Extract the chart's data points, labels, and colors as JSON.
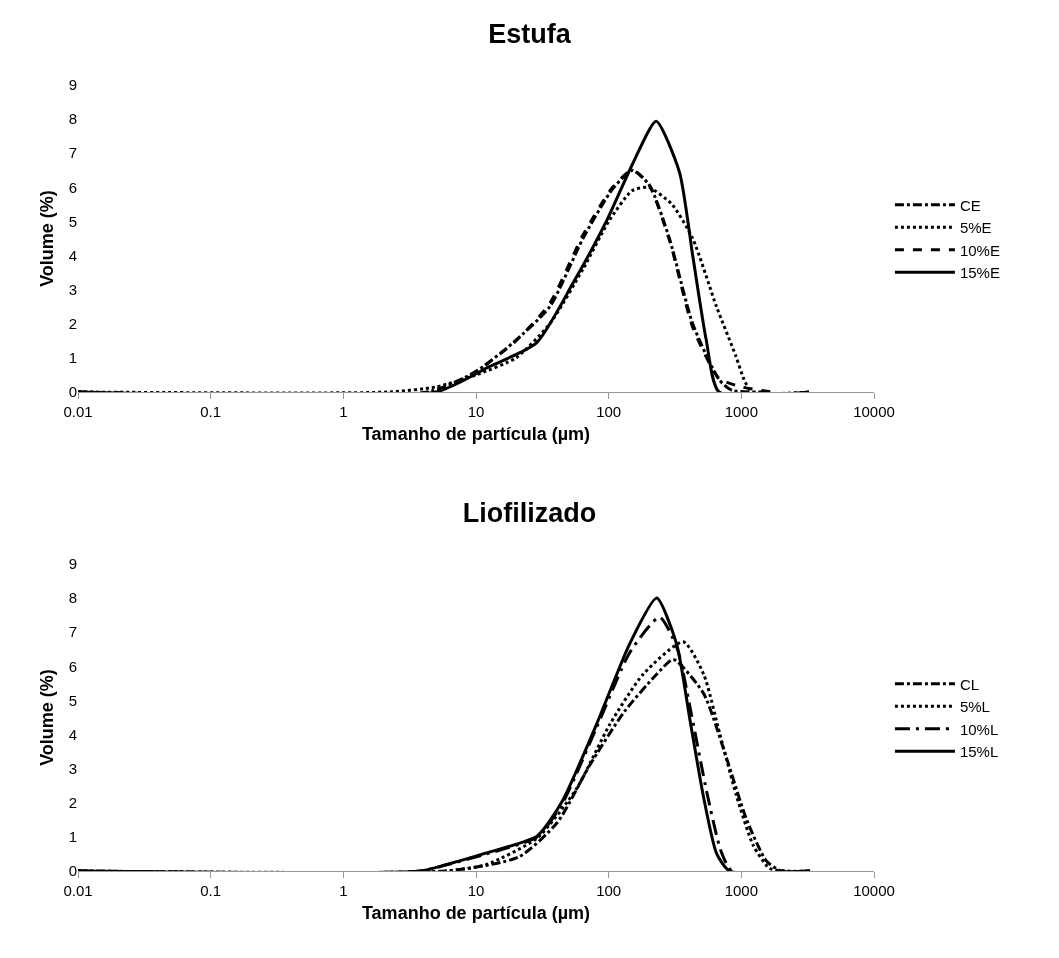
{
  "chart_data": [
    {
      "type": "line",
      "title": "Estufa",
      "xlabel": "Tamanho de partícula (µm)",
      "ylabel": "Volume (%)",
      "log": "x",
      "grid": false,
      "legend": "right",
      "marker": "none",
      "xlim": [
        0.01,
        10000
      ],
      "xticks": [
        0.01,
        0.1,
        1,
        10,
        100,
        1000,
        10000
      ],
      "ylim": [
        0,
        9
      ],
      "yticks": [
        0,
        1,
        2,
        3,
        4,
        5,
        6,
        7,
        8,
        9
      ],
      "series": [
        {
          "name": "CE",
          "color": "#000000",
          "line_style": "dashdot",
          "x": [
            0.01,
            4.3,
            9.6,
            19,
            36,
            64,
            107,
            152,
            204,
            287,
            430,
            680,
            850,
            1620
          ],
          "values": [
            0,
            0,
            0.56,
            1.44,
            2.5,
            4.5,
            5.95,
            6.5,
            6.05,
            4.5,
            2.0,
            0.36,
            0.05,
            0
          ]
        },
        {
          "name": "5%E",
          "color": "#000000",
          "line_style": "dotted",
          "x": [
            0.01,
            2.2,
            5,
            10,
            20,
            36,
            64,
            100,
            150,
            200,
            300,
            430,
            650,
            910,
            1050,
            1200,
            3240
          ],
          "values": [
            0,
            0,
            0.15,
            0.5,
            1.0,
            2.0,
            3.6,
            5.0,
            5.9,
            6.0,
            5.5,
            4.5,
            2.5,
            1.05,
            0.36,
            0,
            0
          ]
        },
        {
          "name": "10%E",
          "color": "#000000",
          "line_style": "dashed",
          "x": [
            0.01,
            4.5,
            10,
            20,
            36,
            64,
            107,
            150,
            200,
            290,
            430,
            680,
            1000,
            1700
          ],
          "values": [
            0,
            0,
            0.6,
            1.5,
            2.6,
            4.6,
            6.0,
            6.5,
            6.1,
            4.4,
            1.9,
            0.4,
            0.15,
            0
          ]
        },
        {
          "name": "15%E",
          "color": "#000000",
          "line_style": "solid",
          "x": [
            0.01,
            5,
            12.7,
            28.6,
            54,
            96,
            152,
            228,
            342,
            430,
            543,
            680,
            3240
          ],
          "values": [
            0,
            0,
            0.75,
            1.44,
            3.2,
            5.0,
            6.7,
            7.94,
            6.44,
            4.0,
            1.54,
            0,
            0
          ]
        }
      ]
    },
    {
      "type": "line",
      "title": "Liofilizado",
      "xlabel": "Tamanho de partícula (µm)",
      "ylabel": "Volume (%)",
      "log": "x",
      "grid": false,
      "legend": "right",
      "marker": "none",
      "xlim": [
        0.01,
        10000
      ],
      "xticks": [
        0.01,
        0.1,
        1,
        10,
        100,
        1000,
        10000
      ],
      "ylim": [
        0,
        9
      ],
      "yticks": [
        0,
        1,
        2,
        3,
        4,
        5,
        6,
        7,
        8,
        9
      ],
      "series": [
        {
          "name": "CL",
          "color": "#000000",
          "line_style": "dashdot",
          "x": [
            0.01,
            6,
            21,
            41,
            72,
            130,
            230,
            307,
            520,
            775,
            1090,
            1540,
            2000,
            3300
          ],
          "values": [
            0,
            0,
            0.41,
            1.42,
            3.1,
            4.65,
            5.77,
            6.2,
            5.2,
            3.3,
            1.53,
            0.3,
            0,
            0
          ]
        },
        {
          "name": "5%L",
          "color": "#000000",
          "line_style": "dotted",
          "x": [
            0.01,
            6,
            12,
            29,
            57,
            102,
            182,
            365,
            520,
            690,
            920,
            1230,
            1630,
            2200,
            3300
          ],
          "values": [
            0,
            0,
            0.19,
            0.97,
            2.4,
            4.3,
            5.77,
            6.72,
            5.77,
            4.0,
            2.2,
            0.75,
            0.08,
            0,
            0
          ]
        },
        {
          "name": "10%L",
          "color": "#000000",
          "line_style": "longdashdot",
          "x": [
            0.01,
            3.8,
            6,
            12,
            29,
            45,
            81,
            144,
            242,
            330,
            420,
            550,
            700,
            850,
            3300
          ],
          "values": [
            0,
            0,
            0.18,
            0.5,
            1.0,
            2.0,
            4.2,
            6.4,
            7.44,
            6.5,
            4.6,
            2.3,
            0.6,
            0,
            0
          ]
        },
        {
          "name": "15%L",
          "color": "#000000",
          "line_style": "solid",
          "x": [
            0.01,
            3.8,
            6,
            12,
            29,
            45,
            81,
            144,
            230,
            325,
            410,
            517,
            650,
            815,
            3300
          ],
          "values": [
            0,
            0,
            0.19,
            0.53,
            1.03,
            2.07,
            4.3,
            6.66,
            8.0,
            6.66,
            4.43,
            2.2,
            0.52,
            0,
            0
          ]
        }
      ]
    }
  ]
}
